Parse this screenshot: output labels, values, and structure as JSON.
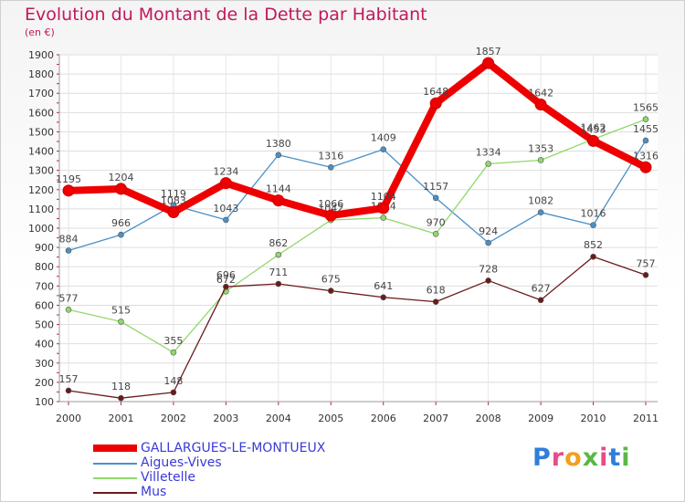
{
  "title": "Evolution du Montant de la Dette par Habitant",
  "subtitle": "(en €)",
  "logo": {
    "text": "Proxiti",
    "colors": [
      "#2f7fd8",
      "#e94b8a",
      "#f2a01e",
      "#58b947",
      "#e94b8a",
      "#2f7fd8",
      "#58b947"
    ]
  },
  "chart_data": {
    "type": "line",
    "x": [
      "2000",
      "2001",
      "2002",
      "2003",
      "2004",
      "2005",
      "2006",
      "2007",
      "2008",
      "2009",
      "2010",
      "2011"
    ],
    "ylim": [
      100,
      1900
    ],
    "yticks": [
      100,
      200,
      300,
      400,
      500,
      600,
      700,
      800,
      900,
      1000,
      1100,
      1200,
      1300,
      1400,
      1500,
      1600,
      1700,
      1800,
      1900
    ],
    "grid": true,
    "legend_position": "bottom-left",
    "series": [
      {
        "name": "GALLARGUES-LE-MONTUEUX",
        "color": "#ee0000",
        "values": [
          1195,
          1204,
          1083,
          1234,
          1144,
          1066,
          1104,
          1648,
          1857,
          1642,
          1453,
          1316
        ]
      },
      {
        "name": "Aigues-Vives",
        "color": "#4a90c8",
        "values": [
          884,
          966,
          1119,
          1043,
          1380,
          1316,
          1409,
          1157,
          924,
          1082,
          1016,
          1455
        ]
      },
      {
        "name": "Villetelle",
        "color": "#8fd86a",
        "values": [
          577,
          515,
          355,
          672,
          862,
          1042,
          1054,
          970,
          1334,
          1353,
          1462,
          1565
        ]
      },
      {
        "name": "Mus",
        "color": "#6b1a1a",
        "values": [
          157,
          118,
          148,
          696,
          711,
          675,
          641,
          618,
          728,
          627,
          852,
          757
        ]
      }
    ]
  }
}
